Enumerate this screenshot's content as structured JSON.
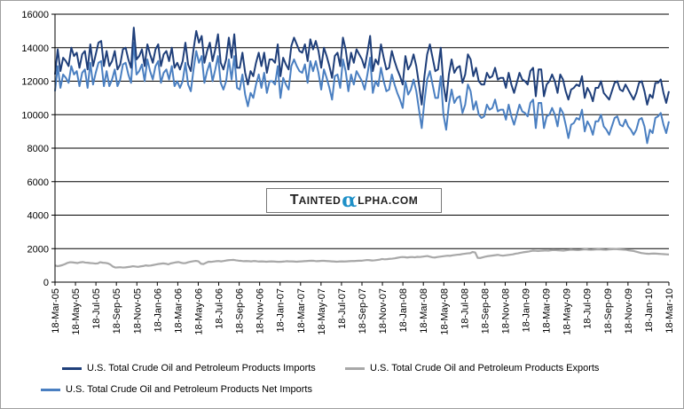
{
  "chart_data": {
    "type": "line",
    "title": "",
    "xlabel": "",
    "ylabel": "",
    "ylim": [
      0,
      16000
    ],
    "yticks": [
      0,
      2000,
      4000,
      6000,
      8000,
      10000,
      12000,
      14000,
      16000
    ],
    "ytick_labels": [
      "0",
      "2000",
      "4000",
      "6000",
      "8000",
      "10000",
      "12000",
      "14000",
      "16000"
    ],
    "xtick_labels": [
      "18-Mar-05",
      "18-May-05",
      "18-Jul-05",
      "18-Sep-05",
      "18-Nov-05",
      "18-Jan-06",
      "18-Mar-06",
      "18-May-06",
      "18-Jul-06",
      "18-Sep-06",
      "18-Nov-06",
      "18-Jan-07",
      "18-Mar-07",
      "18-May-07",
      "18-Jul-07",
      "18-Sep-07",
      "18-Nov-07",
      "18-Jan-08",
      "18-Mar-08",
      "18-May-08",
      "18-Jul-08",
      "18-Sep-08",
      "18-Nov-08",
      "18-Jan-09",
      "18-Mar-09",
      "18-May-09",
      "18-Jul-09",
      "18-Sep-09",
      "18-Nov-09",
      "18-Jan-10",
      "18-Mar-10"
    ],
    "grid": true,
    "legend_position": "bottom",
    "series": [
      {
        "name": "U.S. Total  Crude Oil and Petroleum Products Imports",
        "color": "#1f3f7a",
        "values": [
          12400,
          13900,
          12600,
          13400,
          13200,
          12900,
          14000,
          13500,
          13700,
          12800,
          13600,
          13800,
          12700,
          14200,
          12900,
          13600,
          14300,
          14400,
          12900,
          13800,
          12900,
          13200,
          13800,
          12700,
          13000,
          13900,
          14000,
          13300,
          12800,
          15200,
          13300,
          13500,
          13900,
          12900,
          14200,
          13600,
          13100,
          13900,
          14200,
          12900,
          13600,
          13800,
          13200,
          14000,
          12800,
          13100,
          12700,
          13200,
          14300,
          13000,
          12600,
          13900,
          15000,
          14300,
          14700,
          13100,
          13800,
          14300,
          13200,
          13900,
          14800,
          13100,
          12700,
          13300,
          14600,
          13400,
          14800,
          12800,
          12800,
          13700,
          12500,
          11800,
          12600,
          12300,
          13100,
          13700,
          12900,
          13700,
          12500,
          13300,
          13300,
          13100,
          14200,
          12300,
          13400,
          13000,
          12700,
          14100,
          14600,
          14200,
          13800,
          13700,
          14200,
          13200,
          14500,
          13900,
          14400,
          13800,
          12800,
          14000,
          13500,
          12900,
          12200,
          13500,
          13700,
          12900,
          14600,
          13900,
          12700,
          13700,
          13100,
          13900,
          13600,
          13300,
          12800,
          13700,
          14700,
          12600,
          13300,
          13000,
          14200,
          13400,
          12700,
          12800,
          13800,
          13200,
          12700,
          12300,
          11800,
          13500,
          12700,
          13000,
          13600,
          12900,
          11800,
          10600,
          12300,
          13600,
          14200,
          13400,
          12600,
          12700,
          14000,
          11800,
          10800,
          12400,
          13300,
          12500,
          12800,
          12900,
          11900,
          12400,
          13600,
          13300,
          12300,
          12800,
          12000,
          11800,
          11800,
          12500,
          12200,
          12300,
          12800,
          12100,
          12200,
          12200,
          11600,
          12500,
          11800,
          11300,
          11900,
          12500,
          12100,
          12000,
          11800,
          12600,
          12800,
          11100,
          12700,
          12700,
          11100,
          11800,
          12000,
          12400,
          12000,
          11300,
          12400,
          12100,
          11400,
          10900,
          11500,
          11600,
          11800,
          11700,
          12300,
          11000,
          11600,
          11300,
          10800,
          11600,
          11600,
          12000,
          11300,
          11100,
          10900,
          11400,
          11900,
          12000,
          11500,
          11400,
          11800,
          11500,
          11200,
          10900,
          11300,
          11900,
          12000,
          11400,
          10600,
          11200,
          11000,
          11900,
          11900,
          12100,
          11300,
          10700,
          11400
        ]
      },
      {
        "name": "U.S. Total  Crude Oil and Petroleum Products Exports",
        "color": "#a8a8a8",
        "values": [
          1000,
          950,
          980,
          1020,
          1080,
          1150,
          1190,
          1180,
          1160,
          1140,
          1180,
          1200,
          1170,
          1160,
          1140,
          1130,
          1110,
          1120,
          1190,
          1160,
          1150,
          1120,
          1050,
          930,
          870,
          880,
          890,
          870,
          880,
          900,
          920,
          950,
          930,
          910,
          940,
          960,
          1000,
          980,
          990,
          1020,
          1050,
          1080,
          1100,
          1120,
          1100,
          1060,
          1120,
          1150,
          1180,
          1200,
          1160,
          1130,
          1140,
          1190,
          1220,
          1250,
          1270,
          1240,
          1100,
          1080,
          1150,
          1220,
          1210,
          1230,
          1250,
          1260,
          1240,
          1260,
          1290,
          1310,
          1320,
          1330,
          1300,
          1280,
          1270,
          1250,
          1260,
          1250,
          1240,
          1260,
          1250,
          1230,
          1240,
          1230,
          1220,
          1230,
          1240,
          1230,
          1220,
          1210,
          1220,
          1230,
          1250,
          1240,
          1240,
          1230,
          1220,
          1230,
          1240,
          1250,
          1260,
          1270,
          1280,
          1270,
          1250,
          1260,
          1270,
          1270,
          1260,
          1250,
          1240,
          1230,
          1220,
          1230,
          1240,
          1230,
          1240,
          1250,
          1260,
          1260,
          1270,
          1280,
          1280,
          1300,
          1320,
          1310,
          1290,
          1300,
          1320,
          1340,
          1380,
          1360,
          1370,
          1390,
          1400,
          1420,
          1450,
          1480,
          1500,
          1490,
          1470,
          1490,
          1500,
          1480,
          1510,
          1500,
          1520,
          1540,
          1560,
          1520,
          1480,
          1470,
          1500,
          1520,
          1540,
          1560,
          1580,
          1570,
          1600,
          1620,
          1640,
          1650,
          1680,
          1700,
          1720,
          1730,
          1800,
          1770,
          1450,
          1440,
          1480,
          1520,
          1550,
          1570,
          1590,
          1610,
          1630,
          1600,
          1580,
          1600,
          1620,
          1640,
          1660,
          1700,
          1720,
          1750,
          1780,
          1800,
          1820,
          1850,
          1880,
          1870,
          1860,
          1870,
          1880,
          1890,
          1880,
          1900,
          1920,
          1910,
          1900,
          1890,
          1880,
          1900,
          1920,
          1940,
          1930,
          1920,
          1910,
          1930,
          1950,
          1960,
          1940,
          1930,
          1940,
          1950,
          1960,
          1950,
          1940,
          1930,
          1950,
          1960,
          1970,
          1980,
          1960,
          1950,
          1940,
          1930,
          1900,
          1880,
          1860,
          1820,
          1780,
          1740,
          1720,
          1700,
          1690,
          1700,
          1710,
          1700,
          1690,
          1680,
          1670,
          1660,
          1650
        ]
      },
      {
        "name": "U.S. Total  Crude Oil and Petroleum Products Net Imports",
        "color": "#4a7fc1",
        "values": [
          11400,
          12900,
          11600,
          12400,
          12200,
          11900,
          12900,
          12400,
          12600,
          11700,
          12500,
          12700,
          11600,
          13100,
          11800,
          12500,
          13100,
          13200,
          11700,
          12600,
          11700,
          12100,
          12700,
          11700,
          12100,
          13000,
          13100,
          12400,
          11900,
          14300,
          12400,
          12600,
          13000,
          12000,
          13300,
          12600,
          12100,
          12900,
          13200,
          11900,
          12500,
          12700,
          12100,
          12900,
          11700,
          12000,
          11600,
          12000,
          13100,
          11800,
          11400,
          12700,
          13800,
          13100,
          13500,
          11900,
          12600,
          13100,
          12000,
          12700,
          13500,
          11900,
          11500,
          12000,
          13300,
          12100,
          13500,
          11600,
          11500,
          12400,
          11200,
          10500,
          11300,
          11000,
          11800,
          12400,
          11600,
          12500,
          11300,
          12000,
          12000,
          11800,
          12900,
          11000,
          12200,
          11800,
          11500,
          12900,
          13300,
          12900,
          12600,
          12500,
          13000,
          11900,
          13200,
          12600,
          13200,
          12500,
          11500,
          12700,
          12200,
          11600,
          10900,
          12300,
          12400,
          11600,
          13300,
          12600,
          11400,
          12400,
          11800,
          12600,
          12300,
          12000,
          11500,
          12400,
          13400,
          11300,
          12000,
          11700,
          12800,
          12000,
          11400,
          11500,
          12400,
          11800,
          11300,
          10900,
          10400,
          12000,
          11200,
          11500,
          12100,
          11400,
          10300,
          9200,
          10800,
          12100,
          12600,
          11800,
          11000,
          11000,
          12300,
          10000,
          9100,
          10600,
          11500,
          10700,
          11000,
          11100,
          10100,
          10600,
          11800,
          11400,
          10300,
          10800,
          10000,
          9800,
          9900,
          10600,
          10300,
          10400,
          10900,
          10200,
          10300,
          10300,
          9700,
          10600,
          9900,
          9400,
          10000,
          10600,
          10200,
          10100,
          9900,
          10700,
          10900,
          9200,
          10700,
          10700,
          9200,
          9900,
          10000,
          10400,
          10000,
          9300,
          10400,
          10100,
          9400,
          8600,
          9400,
          9500,
          9800,
          9700,
          10300,
          9000,
          9600,
          9300,
          8800,
          9600,
          9600,
          10000,
          9300,
          9100,
          8800,
          9300,
          9800,
          9900,
          9400,
          9300,
          9700,
          9300,
          9100,
          8800,
          9100,
          9700,
          9800,
          9300,
          8300,
          9100,
          8900,
          9800,
          9900,
          10100,
          9400,
          8900,
          9600
        ]
      }
    ]
  },
  "logo": {
    "text": "TAINTEDαLPHA.COM"
  }
}
